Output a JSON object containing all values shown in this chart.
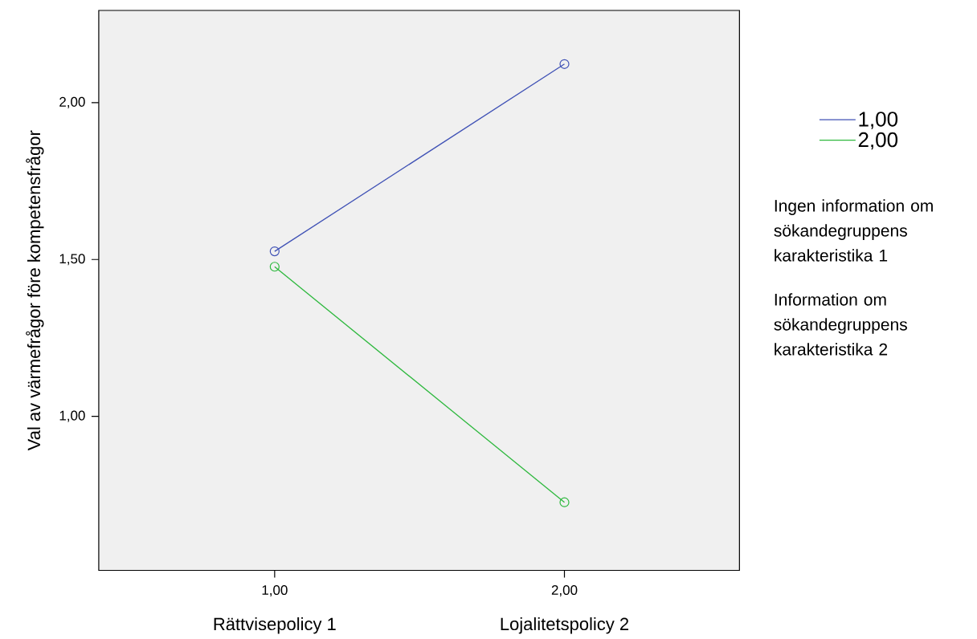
{
  "chart_data": {
    "type": "line",
    "ylabel": "Val av värmefrågor före kompetensfrågor",
    "x": [
      1,
      2
    ],
    "series": [
      {
        "name": "1,00",
        "color": "#3f51b5",
        "values": [
          1.526,
          2.123
        ]
      },
      {
        "name": "2,00",
        "color": "#2db83d",
        "values": [
          1.477,
          0.726
        ]
      }
    ],
    "xlim": [
      0.393,
      2.604
    ],
    "ylim": [
      0.509,
      2.294
    ],
    "xticks": [
      {
        "value": 1,
        "label": "1,00"
      },
      {
        "value": 2,
        "label": "2,00"
      }
    ],
    "yticks": [
      {
        "value": 1,
        "label": "1,00"
      },
      {
        "value": 1.5,
        "label": "1,50"
      },
      {
        "value": 2,
        "label": "2,00"
      }
    ],
    "annotations": [
      "Rättvisepolicy 1",
      "Lojalitetspolicy 2",
      "Ingen information om sökandegruppens karakteristika 1",
      "Information om sökandegruppens karakteristika 2"
    ],
    "legend": "right",
    "marker": "circle",
    "line_style": "solid",
    "grid": false
  }
}
